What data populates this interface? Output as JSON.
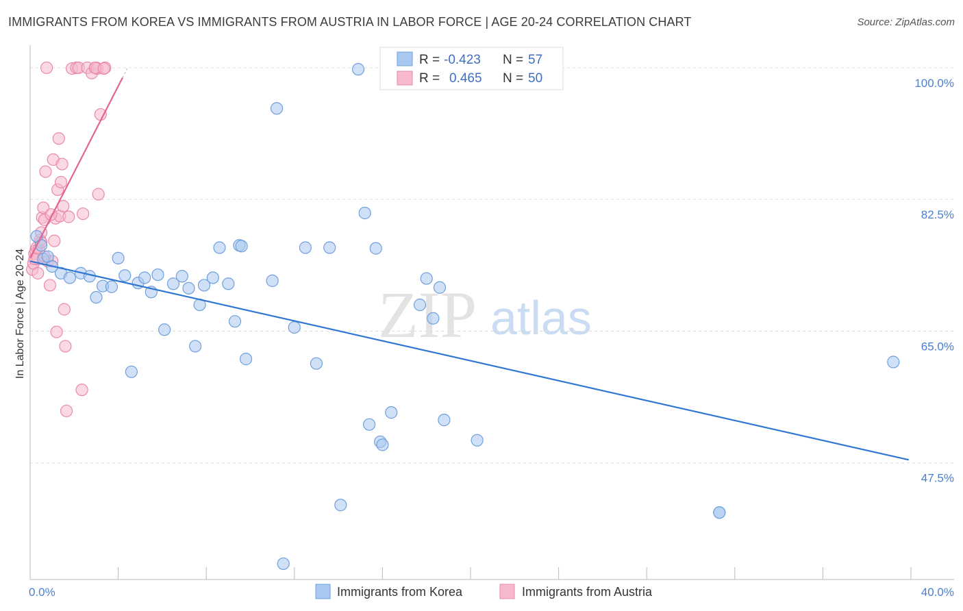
{
  "header": {
    "title": "IMMIGRANTS FROM KOREA VS IMMIGRANTS FROM AUSTRIA IN LABOR FORCE | AGE 20-24 CORRELATION CHART",
    "source": "Source: ZipAtlas.com"
  },
  "watermark": {
    "zip": "ZIP",
    "atlas": "atlas"
  },
  "legend": {
    "korea": {
      "r_label": "R = ",
      "r_value": "-0.423",
      "n_label": "N = ",
      "n_value": "57"
    },
    "austria": {
      "r_label": "R = ",
      "r_value": "0.465",
      "n_label": "N = ",
      "n_value": "50"
    }
  },
  "bottom_legend": {
    "korea": "Immigrants from Korea",
    "austria": "Immigrants from Austria"
  },
  "colors": {
    "korea_fill": "#a9c8f0",
    "korea_stroke": "#6f9fdc",
    "korea_line": "#2f77d0",
    "austria_fill": "#f6b9cd",
    "austria_stroke": "#e88aa8",
    "austria_line": "#e4648f",
    "tick": "#4a7fcf",
    "grid": "#dddddd"
  },
  "chart_data": {
    "type": "scatter",
    "title": "IMMIGRANTS FROM KOREA VS IMMIGRANTS FROM AUSTRIA IN LABOR FORCE | AGE 20-24 CORRELATION CHART",
    "xlabel": "",
    "ylabel": "In Labor Force | Age 20-24",
    "xlim": [
      0,
      40
    ],
    "ylim": [
      32,
      103
    ],
    "x_tick_labels": [
      "0.0%",
      "40.0%"
    ],
    "y_ticks": [
      47.5,
      65.0,
      82.5,
      100.0
    ],
    "y_tick_labels": [
      "47.5%",
      "65.0%",
      "82.5%",
      "100.0%"
    ],
    "grid": true,
    "series": [
      {
        "name": "Immigrants from Korea",
        "r": -0.423,
        "n": 57,
        "trend": {
          "x": [
            0,
            39.9
          ],
          "y": [
            74.3,
            47.9
          ]
        },
        "points": [
          [
            0.3,
            77.6
          ],
          [
            0.5,
            76.4
          ],
          [
            0.6,
            74.6
          ],
          [
            0.8,
            74.9
          ],
          [
            1.0,
            73.6
          ],
          [
            1.4,
            72.7
          ],
          [
            1.8,
            72.1
          ],
          [
            2.3,
            72.7
          ],
          [
            2.7,
            72.3
          ],
          [
            3.0,
            69.5
          ],
          [
            3.3,
            71.0
          ],
          [
            3.7,
            70.9
          ],
          [
            4.0,
            74.7
          ],
          [
            4.3,
            72.4
          ],
          [
            4.6,
            59.6
          ],
          [
            4.9,
            71.4
          ],
          [
            5.2,
            72.1
          ],
          [
            5.5,
            70.2
          ],
          [
            5.8,
            72.5
          ],
          [
            6.1,
            65.2
          ],
          [
            6.5,
            71.3
          ],
          [
            6.9,
            72.3
          ],
          [
            7.2,
            70.7
          ],
          [
            7.5,
            63.0
          ],
          [
            7.7,
            68.5
          ],
          [
            7.9,
            71.1
          ],
          [
            8.3,
            72.1
          ],
          [
            8.6,
            76.1
          ],
          [
            9.0,
            71.3
          ],
          [
            9.3,
            66.3
          ],
          [
            9.5,
            76.4
          ],
          [
            9.6,
            76.3
          ],
          [
            9.8,
            61.3
          ],
          [
            11.0,
            71.7
          ],
          [
            11.2,
            94.6
          ],
          [
            11.5,
            34.1
          ],
          [
            12.0,
            65.5
          ],
          [
            12.5,
            76.1
          ],
          [
            13.0,
            60.7
          ],
          [
            13.6,
            76.1
          ],
          [
            14.1,
            41.9
          ],
          [
            14.9,
            99.8
          ],
          [
            15.2,
            80.7
          ],
          [
            15.4,
            52.6
          ],
          [
            15.7,
            76.0
          ],
          [
            15.9,
            50.3
          ],
          [
            16.0,
            49.9
          ],
          [
            16.4,
            54.2
          ],
          [
            17.7,
            68.5
          ],
          [
            18.0,
            72.0
          ],
          [
            18.3,
            66.7
          ],
          [
            18.6,
            70.8
          ],
          [
            18.8,
            53.2
          ],
          [
            20.3,
            50.5
          ],
          [
            31.3,
            40.9
          ],
          [
            31.3,
            40.9
          ],
          [
            39.2,
            60.9
          ]
        ]
      },
      {
        "name": "Immigrants from Austria",
        "r": 0.465,
        "n": 50,
        "trend": {
          "x": [
            0,
            4.2
          ],
          "y": [
            74.7,
            98.7
          ]
        },
        "points": [
          [
            0.1,
            73.2
          ],
          [
            0.15,
            74.0
          ],
          [
            0.2,
            75.3
          ],
          [
            0.25,
            75.7
          ],
          [
            0.3,
            76.1
          ],
          [
            0.35,
            74.6
          ],
          [
            0.4,
            75.9
          ],
          [
            0.45,
            77.1
          ],
          [
            0.5,
            78.1
          ],
          [
            0.55,
            80.1
          ],
          [
            0.6,
            81.4
          ],
          [
            0.65,
            79.8
          ],
          [
            0.7,
            86.2
          ],
          [
            0.75,
            100.0
          ],
          [
            0.8,
            74.3
          ],
          [
            0.9,
            71.1
          ],
          [
            1.0,
            74.3
          ],
          [
            1.05,
            87.8
          ],
          [
            1.1,
            77.0
          ],
          [
            1.15,
            80.0
          ],
          [
            1.2,
            64.9
          ],
          [
            1.25,
            83.8
          ],
          [
            1.3,
            90.6
          ],
          [
            1.35,
            80.3
          ],
          [
            1.4,
            84.8
          ],
          [
            1.45,
            87.2
          ],
          [
            1.5,
            81.6
          ],
          [
            1.55,
            67.9
          ],
          [
            1.6,
            63.0
          ],
          [
            1.65,
            54.4
          ],
          [
            1.9,
            99.9
          ],
          [
            2.1,
            100.0
          ],
          [
            2.2,
            100.0
          ],
          [
            2.35,
            57.2
          ],
          [
            2.4,
            80.6
          ],
          [
            2.6,
            100.0
          ],
          [
            2.8,
            99.3
          ],
          [
            3.0,
            100.0
          ],
          [
            3.05,
            99.9
          ],
          [
            3.1,
            83.2
          ],
          [
            3.2,
            93.8
          ],
          [
            3.4,
            100.0
          ],
          [
            0.95,
            80.5
          ],
          [
            0.5,
            76.8
          ],
          [
            0.2,
            74.6
          ],
          [
            0.35,
            72.7
          ],
          [
            0.65,
            74.9
          ],
          [
            1.75,
            80.2
          ],
          [
            2.95,
            100.0
          ],
          [
            3.35,
            99.9
          ]
        ]
      }
    ]
  }
}
